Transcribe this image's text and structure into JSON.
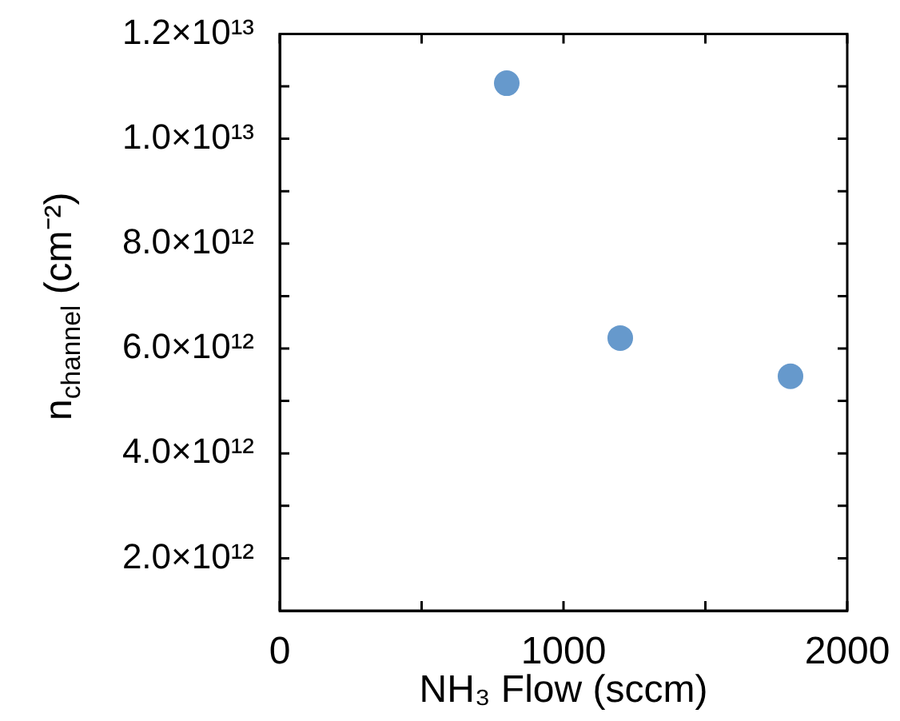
{
  "chart_data": {
    "type": "scatter",
    "xlabel": "NH₃ Flow (sccm)",
    "ylabel": "n$_{channel}$ (cm⁻²)",
    "x": [
      800,
      1200,
      1800
    ],
    "series": [
      {
        "color": "#6699cc",
        "values": [
          11060000000000.0,
          6200000000000.0,
          5470000000000.0
        ]
      }
    ],
    "xlim": [
      0,
      2000
    ],
    "xticks": [
      0,
      {
        "value": 500,
        "label": null
      },
      1000,
      {
        "value": 1500,
        "label": null
      },
      2000
    ],
    "ylim": [
      1000000000000.0,
      12000000000000.0
    ],
    "yticks": [
      {
        "value": 2000000000000.0,
        "label": "2.0×10¹²"
      },
      {
        "value": 3000000000000.0,
        "label": null
      },
      {
        "value": 4000000000000.0,
        "label": "4.0×10¹²"
      },
      {
        "value": 5000000000000.0,
        "label": null
      },
      {
        "value": 6000000000000.0,
        "label": "6.0×10¹²"
      },
      {
        "value": 7000000000000.0,
        "label": null
      },
      {
        "value": 8000000000000.0,
        "label": "8.0×10¹²"
      },
      {
        "value": 9000000000000.0,
        "label": null
      },
      {
        "value": 10000000000000.0,
        "label": "1.0×10¹³"
      },
      {
        "value": 11000000000000.0,
        "label": null
      },
      {
        "value": 12000000000000.0,
        "label": "1.2×10¹³"
      }
    ],
    "marker": "circle",
    "grid": false,
    "legend": false
  }
}
